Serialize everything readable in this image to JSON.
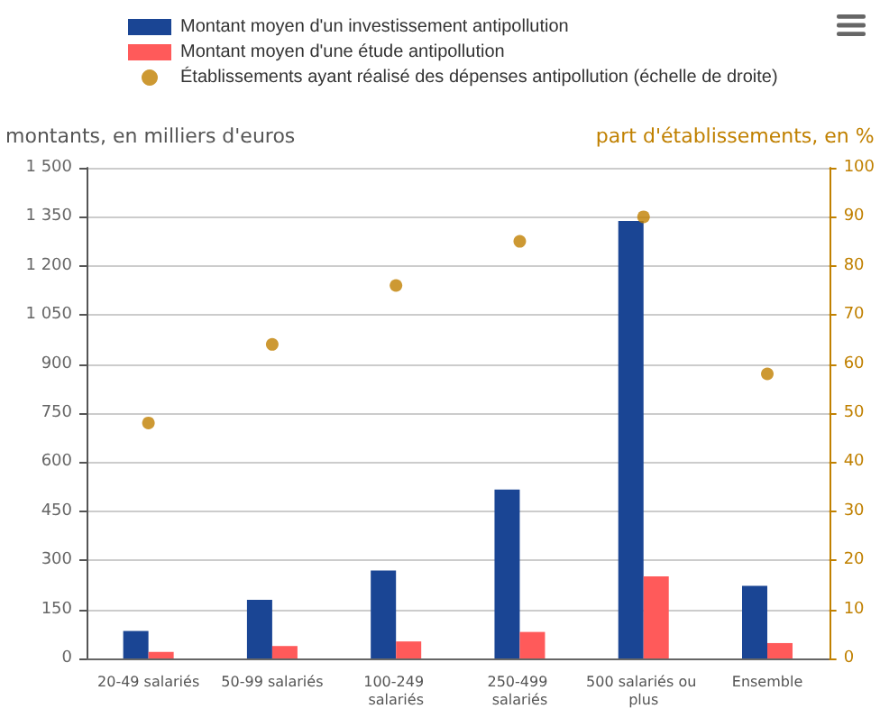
{
  "chart_data": {
    "type": "bar",
    "ylabel": "montants, en milliers d'euros",
    "y2label": "part d'établissements, en %",
    "categories": [
      "20-49 salariés",
      "50-99 salariés",
      "100-249 salariés",
      "250-499 salariés",
      "500 salariés ou plus",
      "Ensemble"
    ],
    "series": [
      {
        "name": "Montant moyen d'un investissement antipollution",
        "color": "#1a4594",
        "values": [
          84,
          179,
          269,
          516,
          1337,
          222
        ]
      },
      {
        "name": "Montant moyen d'une étude antipollution",
        "color": "#ff5a5a",
        "values": [
          20,
          38,
          52,
          81,
          251,
          47
        ]
      },
      {
        "name": "Établissements ayant réalisé des dépenses antipollution (échelle de droite)",
        "type": "scatter",
        "axis": "y2",
        "color": "#c08000",
        "values": [
          48,
          64,
          76,
          85,
          90,
          58
        ]
      }
    ],
    "ylim": [
      0,
      1500
    ],
    "yticks": [
      0,
      150,
      300,
      450,
      600,
      750,
      900,
      {
        "value": 1050,
        "label": "1 050"
      },
      {
        "value": 1200,
        "label": "1 200"
      },
      {
        "value": 1350,
        "label": "1 350"
      },
      {
        "value": 1500,
        "label": "1 500"
      }
    ],
    "y2lim": [
      0,
      100
    ],
    "y2ticks": [
      0,
      10,
      20,
      30,
      40,
      50,
      60,
      70,
      80,
      90,
      100
    ],
    "grid": "y",
    "legend": "top",
    "marker": "circle"
  }
}
